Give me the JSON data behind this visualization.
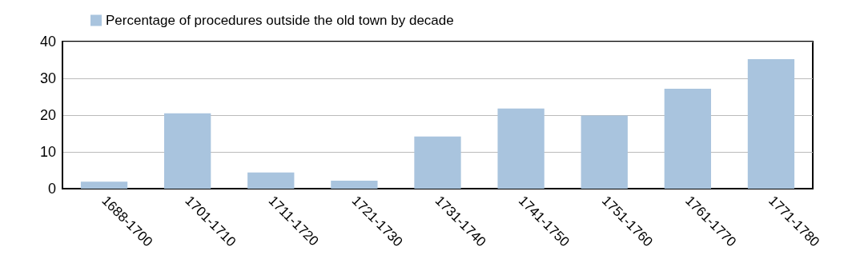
{
  "chart_data": {
    "type": "bar",
    "categories": [
      "1688-1700",
      "1701-1710",
      "1711-1720",
      "1721-1730",
      "1731-1740",
      "1741-1750",
      "1751-1760",
      "1761-1770",
      "1771-1780"
    ],
    "series": [
      {
        "name": "Percentage of procedures outside the old town by decade",
        "color": "#a9c4de",
        "values": [
          1.9,
          20.5,
          4.4,
          2.2,
          14.2,
          21.8,
          19.9,
          27.2,
          35.2
        ]
      }
    ],
    "ylim": [
      0,
      40
    ],
    "yticks": [
      0,
      10,
      20,
      30,
      40
    ],
    "grid": "y",
    "legend": "top left"
  }
}
